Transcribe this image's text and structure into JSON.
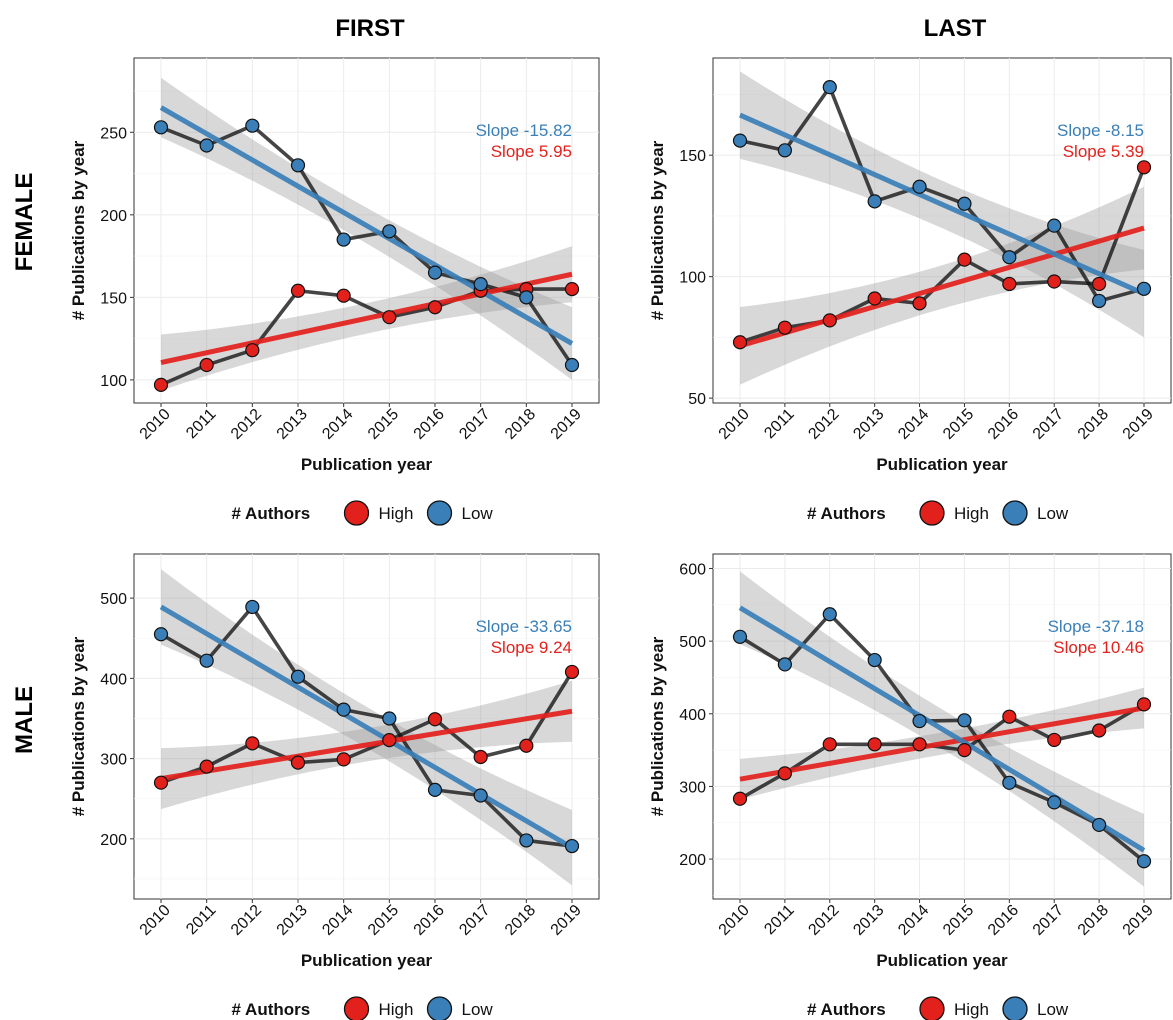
{
  "figure": {
    "col_titles": [
      "FIRST",
      "LAST"
    ],
    "row_titles": [
      "FEMALE",
      "MALE"
    ],
    "legend": {
      "title": "# Authors",
      "labels": [
        "High",
        "Low"
      ]
    },
    "colors": {
      "High": "#e3211c",
      "Low": "#3a7fb7",
      "line": "#111111",
      "ribbon": "#999999"
    }
  },
  "chart_data": [
    {
      "type": "line",
      "column": "FIRST",
      "row": "FEMALE",
      "xlabel": "Publication year",
      "ylabel": "# Publications by year",
      "x": [
        2010,
        2011,
        2012,
        2013,
        2014,
        2015,
        2016,
        2017,
        2018,
        2019
      ],
      "ylim": [
        86,
        295
      ],
      "yticks": [
        100,
        150,
        200,
        250
      ],
      "series": [
        {
          "name": "High",
          "values": [
            97,
            109,
            118,
            154,
            151,
            138,
            144,
            154,
            155,
            155
          ],
          "fit": [
            110.5,
            164
          ],
          "ci_half": [
            17,
            17
          ]
        },
        {
          "name": "Low",
          "values": [
            253,
            242,
            254,
            230,
            185,
            190,
            165,
            158,
            150,
            109
          ],
          "fit": [
            265,
            122
          ],
          "ci_half": [
            18,
            22
          ]
        }
      ],
      "annotations": [
        "Slope -15.82",
        "Slope 5.95"
      ]
    },
    {
      "type": "line",
      "column": "LAST",
      "row": "FEMALE",
      "xlabel": "Publication year",
      "ylabel": "# Publications by year",
      "x": [
        2010,
        2011,
        2012,
        2013,
        2014,
        2015,
        2016,
        2017,
        2018,
        2019
      ],
      "ylim": [
        48,
        190
      ],
      "yticks": [
        50,
        100,
        150
      ],
      "series": [
        {
          "name": "High",
          "values": [
            73,
            79,
            82,
            91,
            89,
            107,
            97,
            98,
            97,
            145
          ],
          "fit": [
            71.5,
            120
          ],
          "ci_half": [
            16,
            17
          ]
        },
        {
          "name": "Low",
          "values": [
            156,
            152,
            178,
            131,
            137,
            130,
            108,
            121,
            90,
            95
          ],
          "fit": [
            166.5,
            93
          ],
          "ci_half": [
            18,
            18
          ]
        }
      ],
      "annotations": [
        "Slope -8.15",
        "Slope 5.39"
      ]
    },
    {
      "type": "line",
      "column": "FIRST",
      "row": "MALE",
      "xlabel": "Publication year",
      "ylabel": "# Publications by year",
      "x": [
        2010,
        2011,
        2012,
        2013,
        2014,
        2015,
        2016,
        2017,
        2018,
        2019
      ],
      "ylim": [
        125,
        555
      ],
      "yticks": [
        200,
        300,
        400,
        500
      ],
      "series": [
        {
          "name": "High",
          "values": [
            270,
            290,
            319,
            295,
            299,
            323,
            349,
            302,
            316,
            408
          ],
          "fit": [
            275,
            359
          ],
          "ci_half": [
            38,
            38
          ]
        },
        {
          "name": "Low",
          "values": [
            455,
            422,
            489,
            402,
            361,
            350,
            261,
            254,
            198,
            191
          ],
          "fit": [
            489,
            189
          ],
          "ci_half": [
            47,
            47
          ]
        }
      ],
      "annotations": [
        "Slope -33.65",
        "Slope 9.24"
      ]
    },
    {
      "type": "line",
      "column": "LAST",
      "row": "MALE",
      "xlabel": "Publication year",
      "ylabel": "# Publications by year",
      "x": [
        2010,
        2011,
        2012,
        2013,
        2014,
        2015,
        2016,
        2017,
        2018,
        2019
      ],
      "ylim": [
        145,
        620
      ],
      "yticks": [
        200,
        300,
        400,
        500,
        600
      ],
      "series": [
        {
          "name": "High",
          "values": [
            283,
            318,
            358,
            358,
            358,
            350,
            396,
            364,
            377,
            413
          ],
          "fit": [
            310,
            408
          ],
          "ci_half": [
            28,
            28
          ]
        },
        {
          "name": "Low",
          "values": [
            506,
            468,
            537,
            474,
            390,
            391,
            305,
            278,
            247,
            197
          ],
          "fit": [
            546,
            212
          ],
          "ci_half": [
            50,
            50
          ]
        }
      ],
      "annotations": [
        "Slope -37.18",
        "Slope 10.46"
      ]
    }
  ]
}
